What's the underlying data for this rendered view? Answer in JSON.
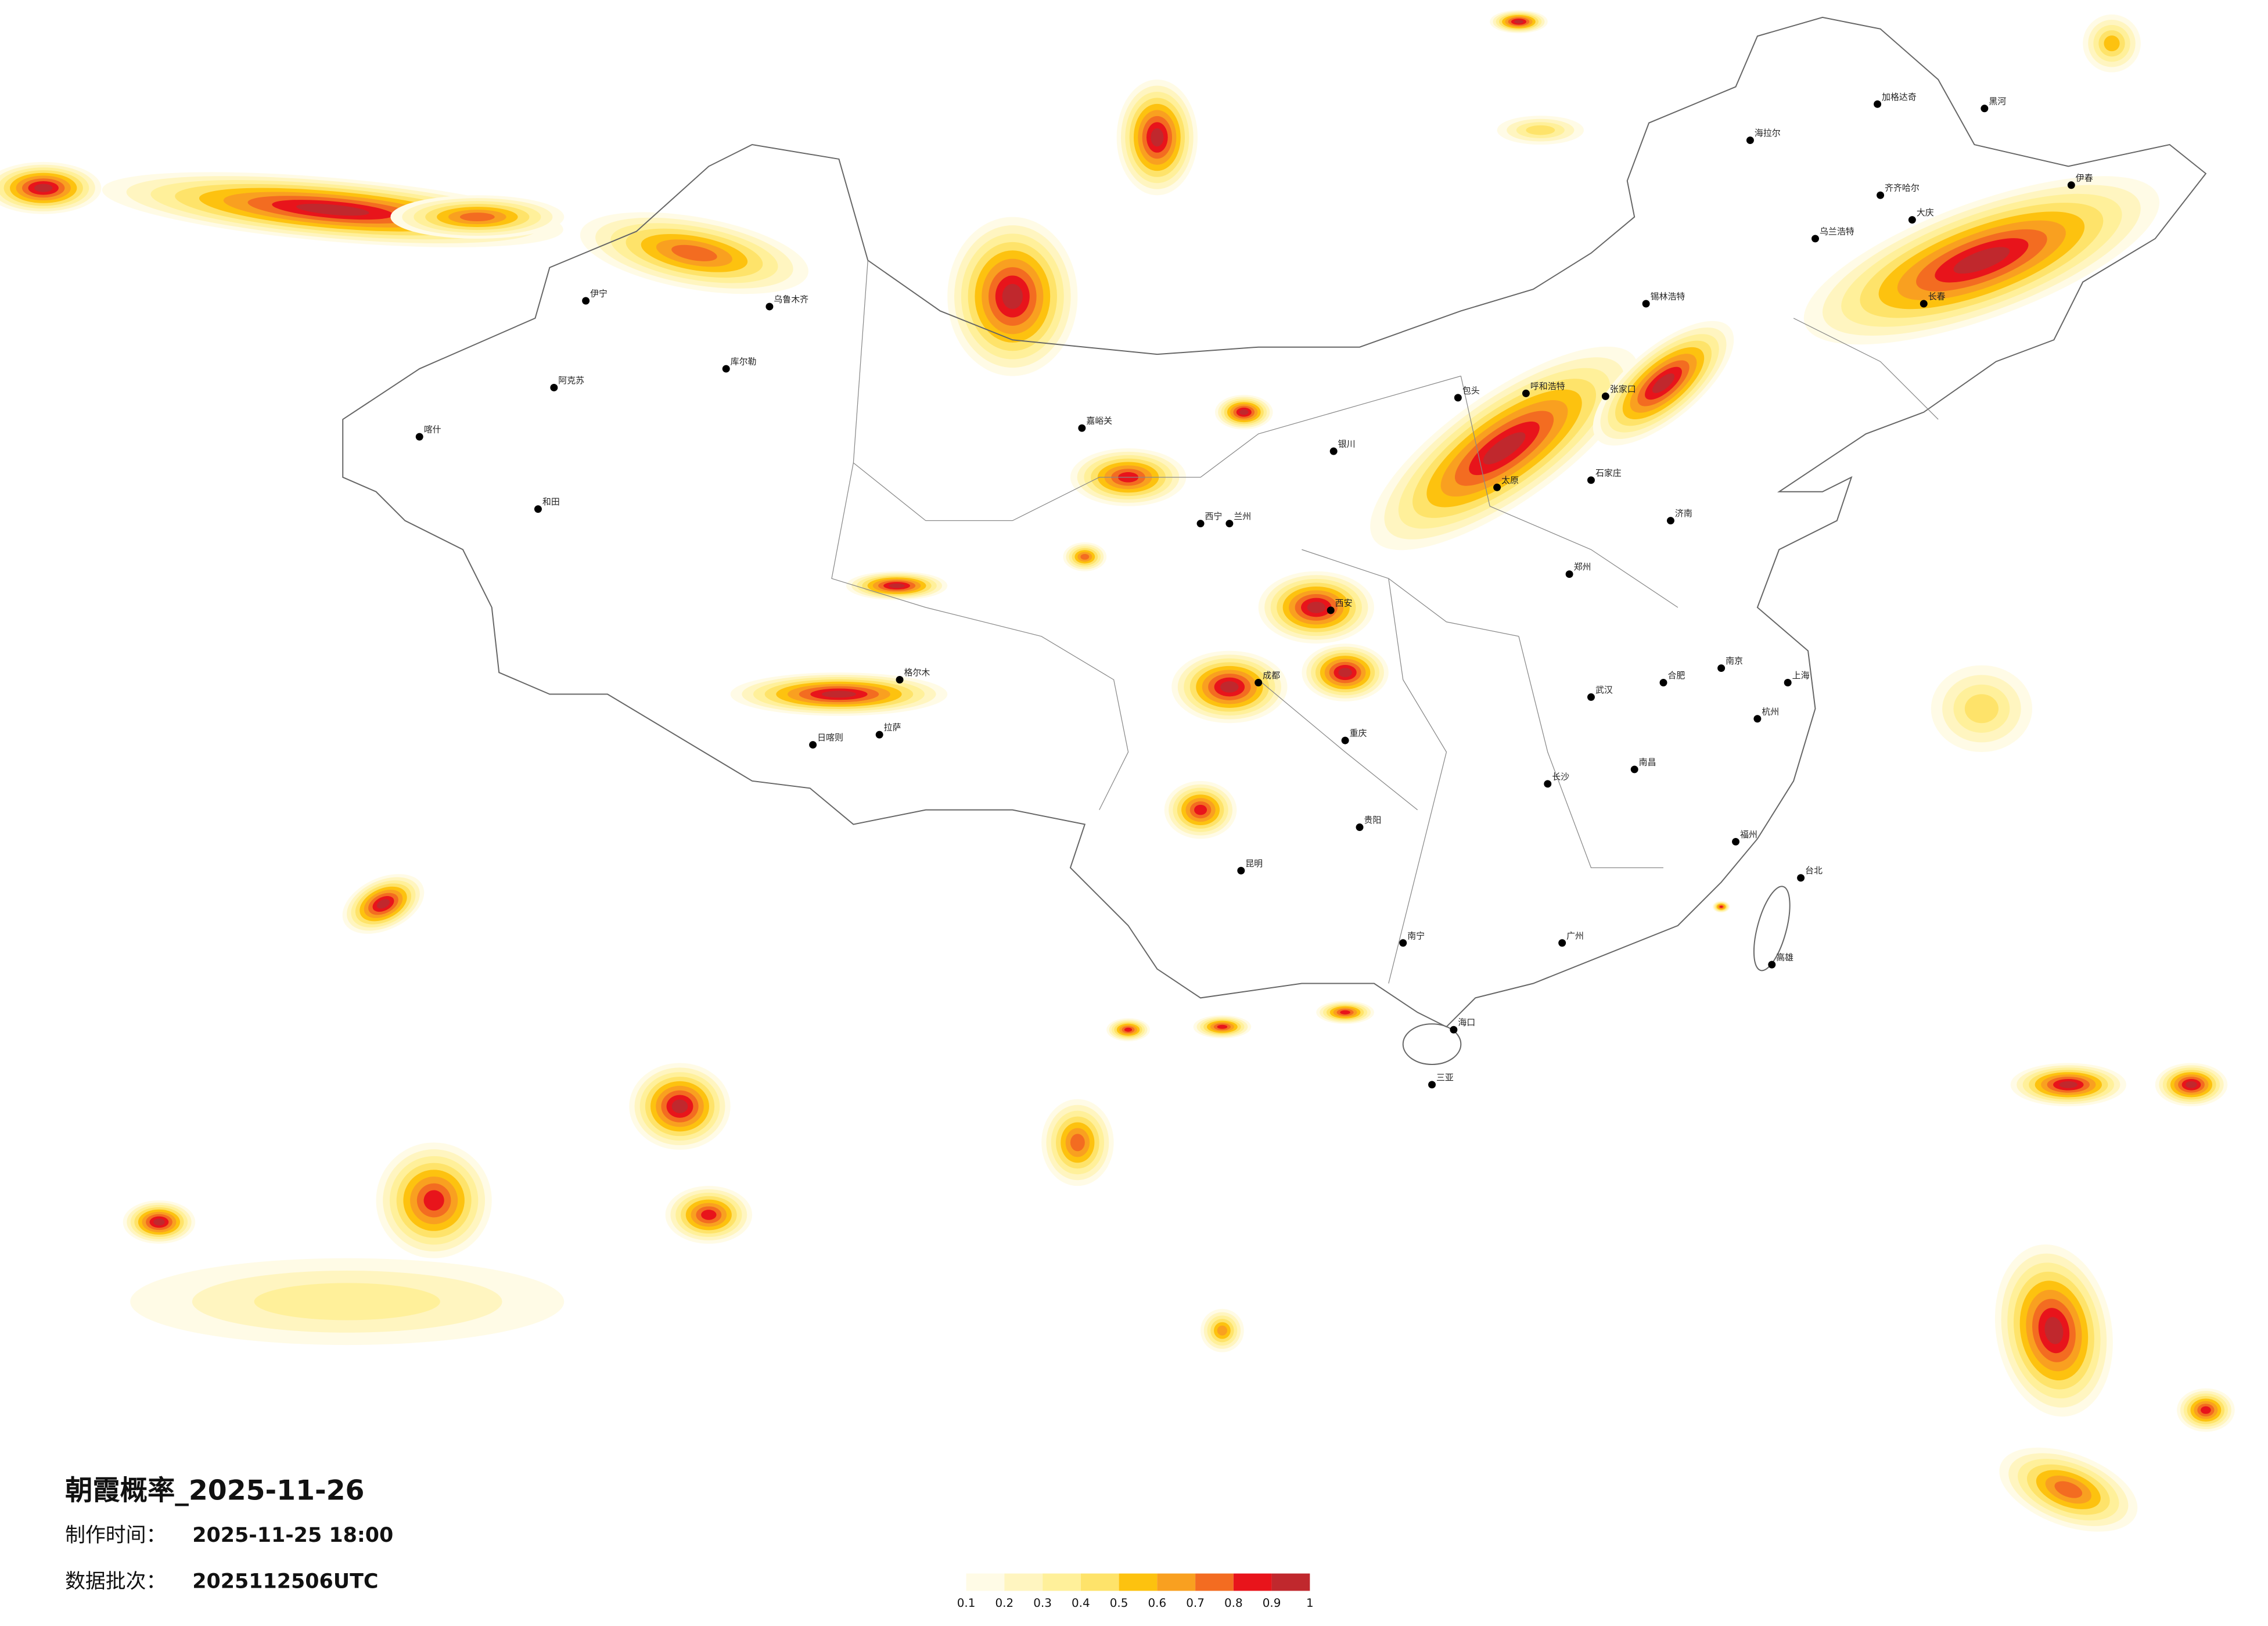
{
  "title": "朝霞概率_2025-11-26",
  "info": [
    {
      "label": "制作时间：",
      "value": "2025-11-25 18:00"
    },
    {
      "label": "数据批次：",
      "value": "2025112506UTC"
    }
  ],
  "legend": {
    "colors": [
      "#fffbe6",
      "#fff5c0",
      "#fff09a",
      "#fee36a",
      "#fdc20f",
      "#f9a020",
      "#f36c21",
      "#e8141b",
      "#c0282d"
    ],
    "ticks": [
      0.1,
      0.2,
      0.3,
      0.4,
      0.5,
      0.6,
      0.7,
      0.8,
      0.9,
      1
    ]
  },
  "cities": [
    "加格达奇",
    "黑河",
    "海拉尔",
    "齐齐哈尔",
    "大庆",
    "伊春",
    "乌兰浩特",
    "长春",
    "锡林浩特",
    "呼和浩特",
    "张家口",
    "包头",
    "银川",
    "石家庄",
    "太原",
    "济南",
    "西宁",
    "兰州",
    "西安",
    "郑州",
    "武汉",
    "南京",
    "上海",
    "杭州",
    "合肥",
    "长沙",
    "南昌",
    "福州",
    "广州",
    "南宁",
    "贵阳",
    "昆明",
    "成都",
    "重庆",
    "拉萨",
    "日喀则",
    "格尔木",
    "嘉峪关",
    "乌鲁木齐",
    "库尔勒",
    "喀什",
    "和田",
    "阿克苏",
    "伊宁",
    "海口",
    "三亚",
    "台北",
    "高雄"
  ]
}
